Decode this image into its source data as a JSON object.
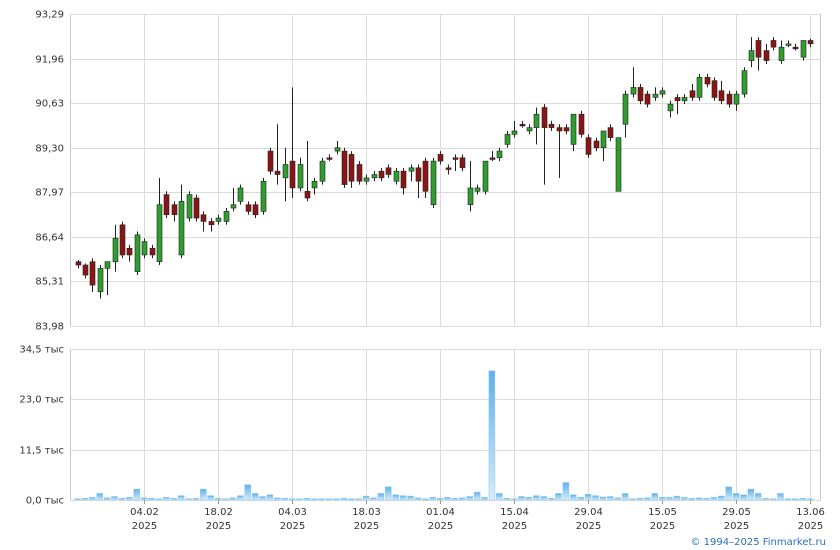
{
  "chart_data": [
    {
      "type": "candlestick",
      "x": [
        "2025-01-22",
        "2025-01-23",
        "2025-01-24",
        "2025-01-27",
        "2025-01-28",
        "2025-01-29",
        "2025-01-30",
        "2025-01-31",
        "2025-02-03",
        "2025-02-04",
        "2025-02-05",
        "2025-02-06",
        "2025-02-07",
        "2025-02-10",
        "2025-02-11",
        "2025-02-12",
        "2025-02-13",
        "2025-02-14",
        "2025-02-17",
        "2025-02-18",
        "2025-02-19",
        "2025-02-20",
        "2025-02-21",
        "2025-02-24",
        "2025-02-25",
        "2025-02-26",
        "2025-02-27",
        "2025-02-28",
        "2025-03-03",
        "2025-03-04",
        "2025-03-05",
        "2025-03-06",
        "2025-03-07",
        "2025-03-10",
        "2025-03-11",
        "2025-03-12",
        "2025-03-13",
        "2025-03-14",
        "2025-03-17",
        "2025-03-18",
        "2025-03-19",
        "2025-03-20",
        "2025-03-21",
        "2025-03-24",
        "2025-03-25",
        "2025-03-26",
        "2025-03-27",
        "2025-03-28",
        "2025-03-31",
        "2025-04-01",
        "2025-04-02",
        "2025-04-03",
        "2025-04-04",
        "2025-04-07",
        "2025-04-08",
        "2025-04-09",
        "2025-04-10",
        "2025-04-11",
        "2025-04-14",
        "2025-04-15",
        "2025-04-16",
        "2025-04-17",
        "2025-04-18",
        "2025-04-21",
        "2025-04-22",
        "2025-04-23",
        "2025-04-24",
        "2025-04-25",
        "2025-04-28",
        "2025-04-29",
        "2025-04-30",
        "2025-05-02",
        "2025-05-05",
        "2025-05-06",
        "2025-05-07",
        "2025-05-08",
        "2025-05-12",
        "2025-05-13",
        "2025-05-14",
        "2025-05-15",
        "2025-05-16",
        "2025-05-19",
        "2025-05-20",
        "2025-05-21",
        "2025-05-22",
        "2025-05-23",
        "2025-05-26",
        "2025-05-27",
        "2025-05-28",
        "2025-05-29",
        "2025-05-30",
        "2025-06-02",
        "2025-06-03",
        "2025-06-04",
        "2025-06-05",
        "2025-06-06",
        "2025-06-09",
        "2025-06-10",
        "2025-06-11",
        "2025-06-13"
      ],
      "open": [
        85.9,
        85.8,
        85.9,
        85.0,
        85.7,
        85.9,
        87.0,
        86.3,
        85.6,
        86.1,
        86.3,
        85.9,
        87.9,
        87.6,
        86.1,
        87.2,
        87.8,
        87.3,
        87.1,
        87.1,
        87.1,
        87.5,
        87.7,
        87.6,
        87.6,
        87.4,
        89.2,
        88.6,
        88.4,
        88.9,
        88.1,
        88.0,
        88.1,
        88.3,
        89.0,
        89.2,
        89.2,
        89.1,
        88.8,
        88.3,
        88.4,
        88.6,
        88.7,
        88.3,
        88.6,
        88.6,
        88.7,
        88.9,
        87.6,
        89.1,
        88.7,
        89.0,
        89.0,
        87.6,
        88.0,
        88.0,
        89.0,
        89.0,
        89.4,
        89.7,
        90.0,
        89.8,
        89.9,
        90.5,
        90.0,
        89.9,
        89.9,
        89.4,
        90.3,
        89.6,
        89.5,
        89.3,
        89.9,
        88.0,
        90.0,
        90.9,
        91.1,
        90.9,
        90.8,
        90.9,
        90.4,
        90.8,
        90.7,
        91.0,
        90.8,
        91.4,
        91.3,
        91.0,
        90.9,
        90.6,
        90.9,
        91.9,
        92.5,
        92.2,
        92.5,
        91.9,
        92.35,
        92.3,
        92.0,
        92.5
      ],
      "high": [
        85.95,
        85.85,
        86.0,
        85.8,
        85.9,
        87.0,
        87.1,
        86.4,
        86.8,
        86.6,
        86.4,
        88.4,
        88.0,
        87.7,
        88.2,
        88.0,
        87.9,
        87.4,
        87.2,
        87.3,
        87.5,
        88.1,
        88.2,
        87.7,
        87.7,
        88.4,
        89.3,
        90.0,
        89.3,
        91.1,
        89.0,
        89.5,
        88.4,
        89.0,
        89.1,
        89.5,
        89.3,
        89.2,
        88.9,
        88.5,
        88.6,
        88.7,
        88.8,
        88.7,
        88.7,
        88.8,
        88.8,
        89.0,
        89.0,
        89.2,
        88.8,
        89.1,
        89.1,
        88.9,
        88.2,
        88.9,
        89.2,
        89.3,
        89.8,
        90.1,
        90.1,
        90.0,
        90.5,
        90.6,
        90.1,
        90.0,
        90.0,
        90.3,
        90.4,
        89.7,
        89.6,
        89.8,
        90.0,
        89.6,
        91.0,
        91.7,
        91.2,
        91.0,
        91.1,
        91.1,
        90.7,
        90.9,
        90.9,
        91.2,
        91.5,
        91.5,
        91.4,
        91.3,
        91.0,
        91.0,
        91.7,
        92.6,
        92.6,
        92.4,
        92.6,
        92.5,
        92.5,
        92.4,
        92.5,
        92.55
      ],
      "low": [
        85.7,
        85.4,
        85.0,
        84.8,
        84.9,
        85.6,
        86.0,
        85.9,
        85.5,
        86.0,
        86.0,
        85.8,
        87.2,
        87.1,
        86.0,
        87.1,
        87.1,
        86.8,
        86.8,
        87.0,
        87.0,
        87.4,
        87.6,
        87.3,
        87.2,
        87.3,
        88.5,
        88.2,
        87.7,
        87.8,
        88.0,
        87.7,
        87.9,
        88.2,
        88.9,
        89.1,
        88.1,
        88.1,
        88.2,
        88.2,
        88.3,
        88.3,
        88.4,
        88.2,
        87.9,
        88.3,
        87.8,
        87.8,
        87.5,
        88.8,
        88.5,
        88.6,
        88.6,
        87.4,
        87.9,
        87.9,
        88.9,
        88.9,
        89.3,
        89.6,
        89.9,
        89.7,
        89.4,
        88.2,
        89.8,
        88.4,
        89.7,
        89.2,
        89.6,
        89.0,
        89.2,
        88.9,
        89.5,
        88.0,
        89.6,
        90.8,
        90.6,
        90.5,
        90.7,
        90.8,
        90.2,
        90.3,
        90.6,
        90.7,
        90.7,
        91.1,
        90.7,
        90.6,
        90.5,
        90.4,
        90.8,
        91.7,
        91.6,
        91.8,
        92.2,
        91.8,
        92.3,
        92.2,
        91.9,
        92.3
      ],
      "close": [
        85.8,
        85.5,
        85.2,
        85.7,
        85.9,
        86.6,
        86.1,
        86.1,
        86.7,
        86.5,
        86.1,
        87.6,
        87.3,
        87.3,
        87.7,
        87.9,
        87.2,
        87.1,
        87.0,
        87.2,
        87.4,
        87.6,
        88.1,
        87.4,
        87.3,
        88.3,
        88.6,
        88.5,
        88.8,
        88.1,
        88.8,
        87.8,
        88.3,
        88.9,
        88.95,
        89.3,
        88.2,
        88.3,
        88.3,
        88.4,
        88.5,
        88.4,
        88.5,
        88.6,
        88.1,
        88.7,
        88.3,
        88.0,
        88.9,
        88.9,
        88.65,
        88.95,
        88.7,
        88.1,
        88.1,
        88.9,
        88.95,
        89.2,
        89.7,
        89.8,
        89.95,
        89.9,
        90.3,
        89.9,
        89.9,
        89.8,
        89.8,
        90.3,
        89.7,
        89.1,
        89.3,
        89.8,
        89.6,
        89.6,
        90.9,
        91.1,
        90.7,
        90.6,
        90.9,
        91.0,
        90.6,
        90.7,
        90.8,
        90.8,
        91.4,
        91.2,
        90.8,
        90.7,
        90.6,
        90.9,
        91.6,
        92.2,
        92.0,
        91.9,
        92.3,
        92.3,
        92.4,
        92.25,
        92.5,
        92.4
      ],
      "up_color": "#2f9e2f",
      "down_color": "#8b1515",
      "ylim": [
        83.98,
        93.29
      ],
      "yticks": [
        {
          "value": 83.98,
          "label": "83,98"
        },
        {
          "value": 85.31,
          "label": "85,31"
        },
        {
          "value": 86.64,
          "label": "86,64"
        },
        {
          "value": 87.97,
          "label": "87,97"
        },
        {
          "value": 89.3,
          "label": "89,30"
        },
        {
          "value": 90.63,
          "label": "90,63"
        },
        {
          "value": 91.96,
          "label": "91,96"
        },
        {
          "value": 93.29,
          "label": "93,29"
        }
      ],
      "grid": true
    },
    {
      "type": "bar",
      "values": [
        0.3,
        0.4,
        0.6,
        1.5,
        0.5,
        0.8,
        0.4,
        0.6,
        2.5,
        0.5,
        0.4,
        0.3,
        0.6,
        0.4,
        1.0,
        0.3,
        0.4,
        2.5,
        1.0,
        0.4,
        0.3,
        0.5,
        1.0,
        3.5,
        1.5,
        0.8,
        1.2,
        0.5,
        0.4,
        0.3,
        0.3,
        0.4,
        0.3,
        0.3,
        0.3,
        0.3,
        0.4,
        0.3,
        0.3,
        0.9,
        0.5,
        1.5,
        3.0,
        1.2,
        1.0,
        0.9,
        0.5,
        0.3,
        0.6,
        0.4,
        0.6,
        0.4,
        0.5,
        0.8,
        1.8,
        0.6,
        29.5,
        1.5,
        0.4,
        0.3,
        0.8,
        0.6,
        1.0,
        0.8,
        0.4,
        1.5,
        4.0,
        1.2,
        0.6,
        1.3,
        1.0,
        0.7,
        0.8,
        0.5,
        1.5,
        0.3,
        0.4,
        0.5,
        1.5,
        0.6,
        0.6,
        0.9,
        0.6,
        0.4,
        0.5,
        0.4,
        0.6,
        0.9,
        3.0,
        1.5,
        1.2,
        2.5,
        1.5,
        0.4,
        0.3,
        1.5,
        0.3,
        0.3,
        0.4,
        0.3
      ],
      "color": "#8ec9f0",
      "ylim": [
        0,
        34.5
      ],
      "yticks": [
        {
          "value": 0,
          "label": "0,0 тыс"
        },
        {
          "value": 11.5,
          "label": "11,5 тыс"
        },
        {
          "value": 23,
          "label": "23,0 тыс"
        },
        {
          "value": 34.5,
          "label": "34,5 тыс"
        }
      ],
      "xticks": [
        {
          "value": "2025-02-04",
          "label": "04.02",
          "year": "2025"
        },
        {
          "value": "2025-02-18",
          "label": "18.02",
          "year": "2025"
        },
        {
          "value": "2025-03-04",
          "label": "04.03",
          "year": "2025"
        },
        {
          "value": "2025-03-18",
          "label": "18.03",
          "year": "2025"
        },
        {
          "value": "2025-04-01",
          "label": "01.04",
          "year": "2025"
        },
        {
          "value": "2025-04-15",
          "label": "15.04",
          "year": "2025"
        },
        {
          "value": "2025-04-29",
          "label": "29.04",
          "year": "2025"
        },
        {
          "value": "2025-05-15",
          "label": "15.05",
          "year": "2025"
        },
        {
          "value": "2025-05-29",
          "label": "29.05",
          "year": "2025"
        },
        {
          "value": "2025-06-13",
          "label": "13.06",
          "year": "2025"
        }
      ],
      "grid": true
    }
  ],
  "footer": "© 1994–2025 Finmarket.ru"
}
